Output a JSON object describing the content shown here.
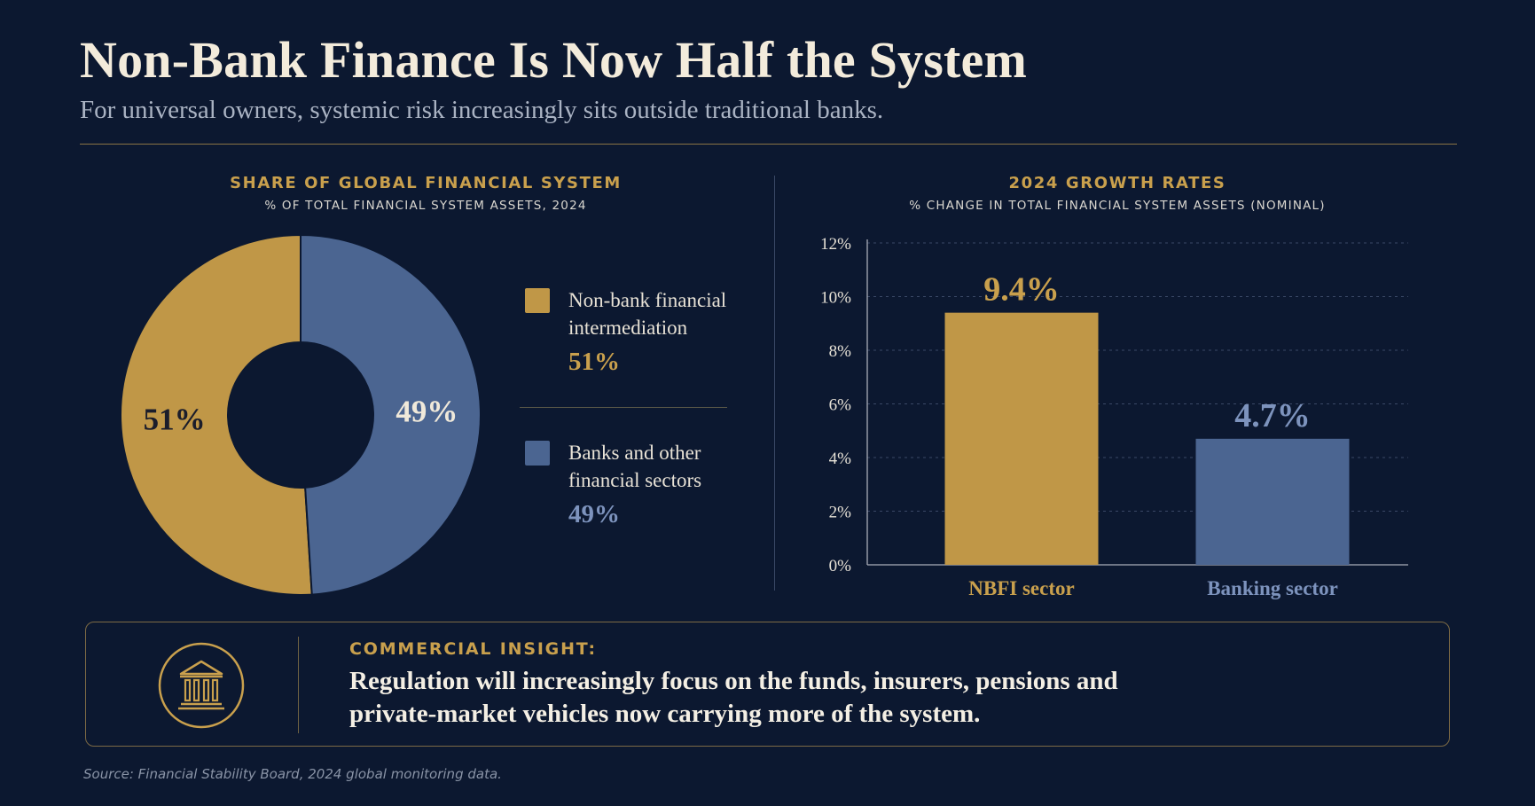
{
  "header": {
    "title": "Non-Bank Finance Is Now Half the System",
    "subtitle": "For universal owners, systemic risk increasingly sits outside traditional banks."
  },
  "donut_panel": {
    "title": "SHARE OF GLOBAL FINANCIAL SYSTEM",
    "subtitle": "% OF TOTAL FINANCIAL SYSTEM ASSETS, 2024"
  },
  "bar_panel": {
    "title": "2024 GROWTH RATES",
    "subtitle": "% CHANGE IN TOTAL FINANCIAL SYSTEM ASSETS (NOMINAL)"
  },
  "legend": {
    "items": [
      {
        "label_line1": "Non-bank financial",
        "label_line2": "intermediation",
        "value": "51%"
      },
      {
        "label_line1": "Banks and other",
        "label_line2": "financial sectors",
        "value": "49%"
      }
    ]
  },
  "colors": {
    "gold": "#c09747",
    "blue": "#4b6591",
    "background": "#0c1830"
  },
  "chart_data": [
    {
      "type": "pie",
      "title": "SHARE OF GLOBAL FINANCIAL SYSTEM",
      "subtitle": "% OF TOTAL FINANCIAL SYSTEM ASSETS, 2024",
      "donut": true,
      "categories": [
        "Non-bank financial intermediation",
        "Banks and other financial sectors"
      ],
      "values": [
        51,
        49
      ],
      "labels": [
        "51%",
        "49%"
      ],
      "colors": [
        "#c09747",
        "#4b6591"
      ],
      "legend_position": "right"
    },
    {
      "type": "bar",
      "title": "2024 GROWTH RATES",
      "subtitle": "% CHANGE IN TOTAL FINANCIAL SYSTEM ASSETS (NOMINAL)",
      "categories": [
        "NBFI sector",
        "Banking sector"
      ],
      "values": [
        9.4,
        4.7
      ],
      "data_labels": [
        "9.4%",
        "4.7%"
      ],
      "colors": [
        "#c09747",
        "#4b6591"
      ],
      "ylim": [
        0,
        12
      ],
      "yticks": [
        0,
        2,
        4,
        6,
        8,
        10,
        12
      ],
      "ytick_labels": [
        "0%",
        "2%",
        "4%",
        "6%",
        "8%",
        "10%",
        "12%"
      ],
      "grid": true
    }
  ],
  "insight": {
    "icon": "bank-building-icon",
    "kicker": "COMMERCIAL INSIGHT:",
    "line1": "Regulation will increasingly focus on the funds, insurers, pensions and",
    "line2": "private-market vehicles now carrying more of the system."
  },
  "footer": {
    "source": "Source: Financial Stability Board, 2024 global monitoring data."
  }
}
